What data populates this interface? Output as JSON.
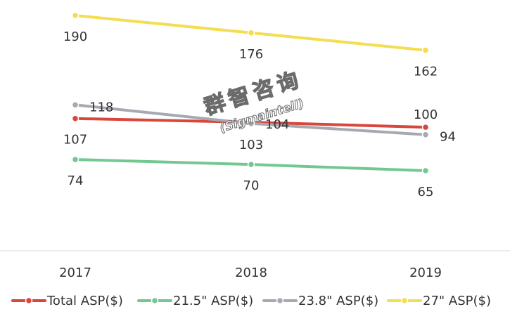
{
  "chart_data": {
    "type": "line",
    "title": "",
    "xlabel": "",
    "ylabel": "",
    "categories": [
      "2017",
      "2018",
      "2019"
    ],
    "ylim": [
      40,
      200
    ],
    "grid": false,
    "legend_position": "bottom",
    "series": [
      {
        "name": "Total ASP($)",
        "color": "#d9463b",
        "values": [
          107,
          104,
          100
        ]
      },
      {
        "name": "21.5\" ASP($)",
        "color": "#73c892",
        "values": [
          74,
          70,
          65
        ]
      },
      {
        "name": "23.8\" ASP($)",
        "color": "#a6aab0",
        "values": [
          118,
          103,
          94
        ]
      },
      {
        "name": "27\" ASP($)",
        "color": "#f4dd50",
        "values": [
          190,
          176,
          162
        ]
      }
    ]
  },
  "watermark": {
    "text_cn": "群智咨询",
    "text_en": "(Sigmaintell)"
  }
}
